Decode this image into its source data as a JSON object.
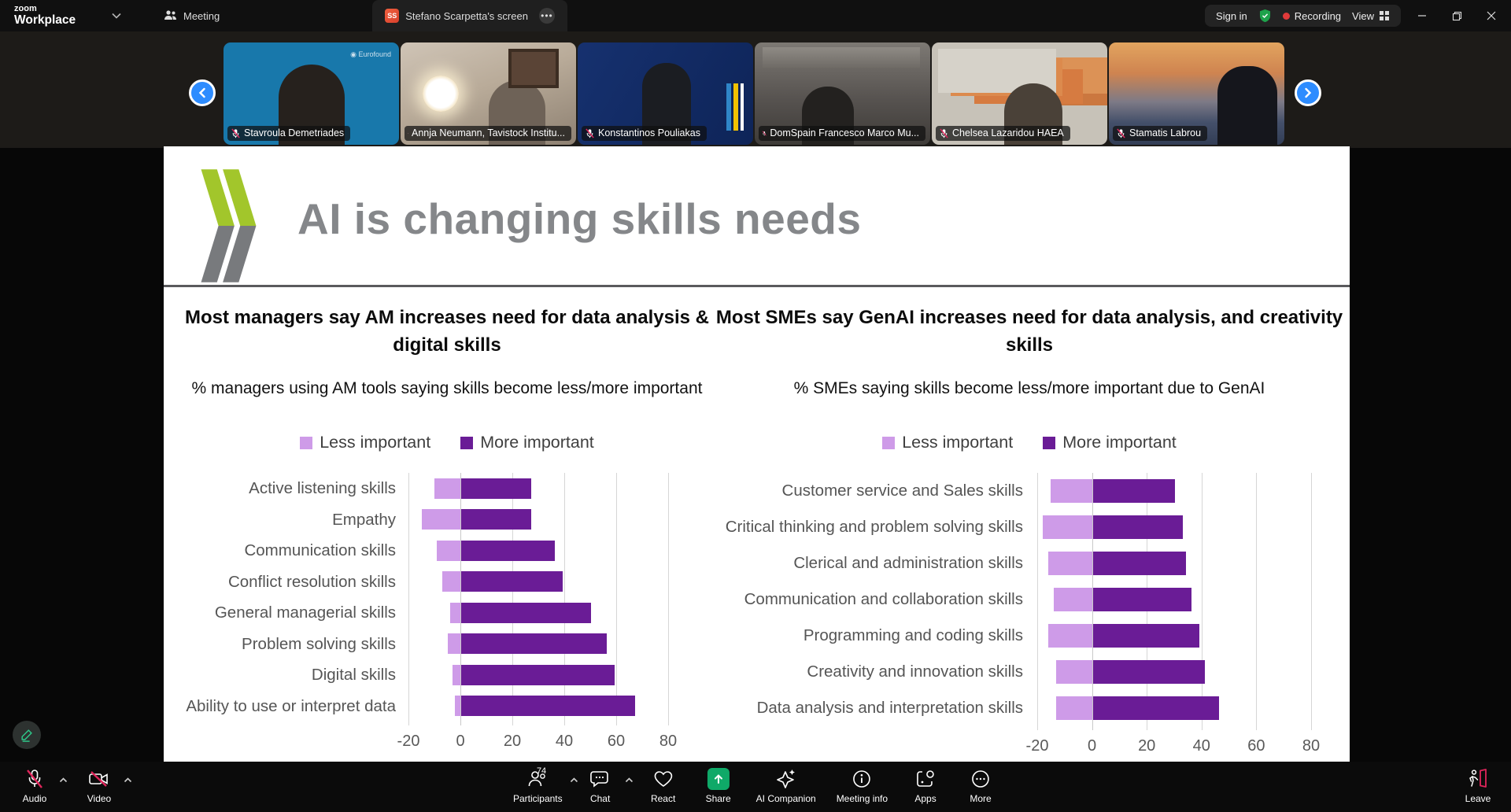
{
  "window": {
    "brand": "zoom",
    "brand_sub": "Workplace",
    "tabs": [
      {
        "label": "Meeting"
      },
      {
        "label": "Stefano Scarpetta's screen",
        "badge": "SS"
      }
    ],
    "sign_in": "Sign in",
    "recording_label": "Recording",
    "view_label": "View"
  },
  "video_strip": {
    "participants": [
      {
        "name": "Stavroula Demetriades"
      },
      {
        "name": "Annja Neumann, Tavistock Institu..."
      },
      {
        "name": "Konstantinos Pouliakas"
      },
      {
        "name": "DomSpain Francesco Marco Mu..."
      },
      {
        "name": "Chelsea Lazaridou HAEA"
      },
      {
        "name": "Stamatis Labrou"
      }
    ]
  },
  "slide": {
    "title": "AI is changing skills needs"
  },
  "chart_data": [
    {
      "type": "bar",
      "orientation": "horizontal",
      "diverging": true,
      "title": "Most managers say AM increases need for data analysis & digital skills",
      "subtitle": "% managers using AM tools saying skills become less/more important",
      "categories": [
        "Active listening skills",
        "Empathy",
        "Communication skills",
        "Conflict resolution skills",
        "General managerial skills",
        "Problem solving skills",
        "Digital skills",
        "Ability to use or interpret data"
      ],
      "series": [
        {
          "name": "Less important",
          "color": "#CE9BE8",
          "values": [
            -10,
            -15,
            -9,
            -7,
            -4,
            -5,
            -3,
            -2
          ]
        },
        {
          "name": "More important",
          "color": "#6A1C96",
          "values": [
            27,
            27,
            36,
            39,
            50,
            56,
            59,
            67
          ]
        }
      ],
      "xlim": [
        -20,
        80
      ],
      "ticks": [
        -20,
        0,
        20,
        40,
        60,
        80
      ],
      "grid": true,
      "legend_position": "top"
    },
    {
      "type": "bar",
      "orientation": "horizontal",
      "diverging": true,
      "title": "Most SMEs say GenAI increases need for data analysis, and creativity skills",
      "subtitle": "% SMEs saying skills become less/more important due to GenAI",
      "categories": [
        "Customer service and Sales skills",
        "Critical thinking and problem solving skills",
        "Clerical and administration skills",
        "Communication and collaboration skills",
        "Programming and coding skills",
        "Creativity and innovation skills",
        "Data analysis and interpretation skills"
      ],
      "series": [
        {
          "name": "Less important",
          "color": "#CE9BE8",
          "values": [
            -15,
            -18,
            -16,
            -14,
            -16,
            -13,
            -13
          ]
        },
        {
          "name": "More important",
          "color": "#6A1C96",
          "values": [
            30,
            33,
            34,
            36,
            39,
            41,
            46
          ]
        }
      ],
      "xlim": [
        -20,
        80
      ],
      "ticks": [
        -20,
        0,
        20,
        40,
        60,
        80
      ],
      "grid": true,
      "legend_position": "top"
    }
  ],
  "toolbar": {
    "audio": "Audio",
    "video": "Video",
    "participants": "Participants",
    "participants_count": "74",
    "chat": "Chat",
    "react": "React",
    "share": "Share",
    "ai_companion": "AI Companion",
    "meeting_info": "Meeting info",
    "apps": "Apps",
    "more": "More",
    "leave": "Leave"
  }
}
